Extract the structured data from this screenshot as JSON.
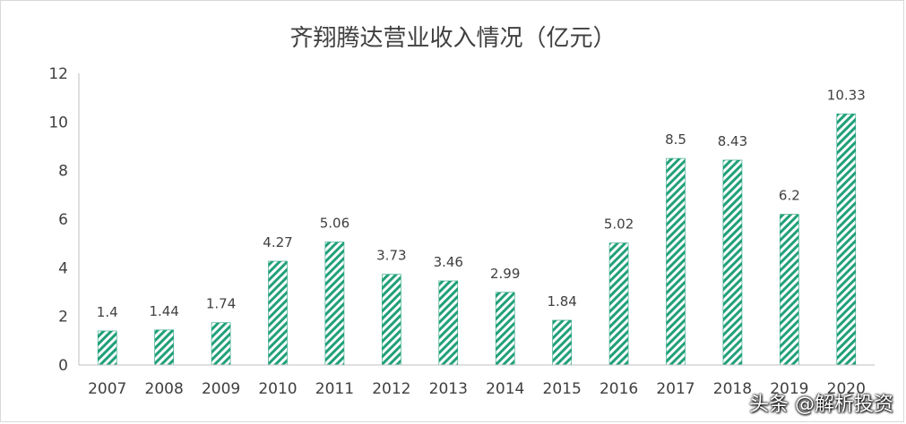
{
  "chart_data": {
    "type": "bar",
    "title": "齐翔腾达营业收入情况（亿元）",
    "categories": [
      "2007",
      "2008",
      "2009",
      "2010",
      "2011",
      "2012",
      "2013",
      "2014",
      "2015",
      "2016",
      "2017",
      "2018",
      "2019",
      "2020"
    ],
    "values": [
      1.4,
      1.44,
      1.74,
      4.27,
      5.06,
      3.73,
      3.46,
      2.99,
      1.84,
      5.02,
      8.5,
      8.43,
      6.2,
      10.33
    ],
    "ylim": [
      0,
      12
    ],
    "yticks": [
      0,
      2,
      4,
      6,
      8,
      10,
      12
    ],
    "grid": false,
    "bar_pattern": "diagonal-stripes",
    "colors": {
      "bar": "#21a07a",
      "text": "#404040",
      "axis": "#bfbfbf"
    }
  },
  "watermark": "头条 @解析投资"
}
